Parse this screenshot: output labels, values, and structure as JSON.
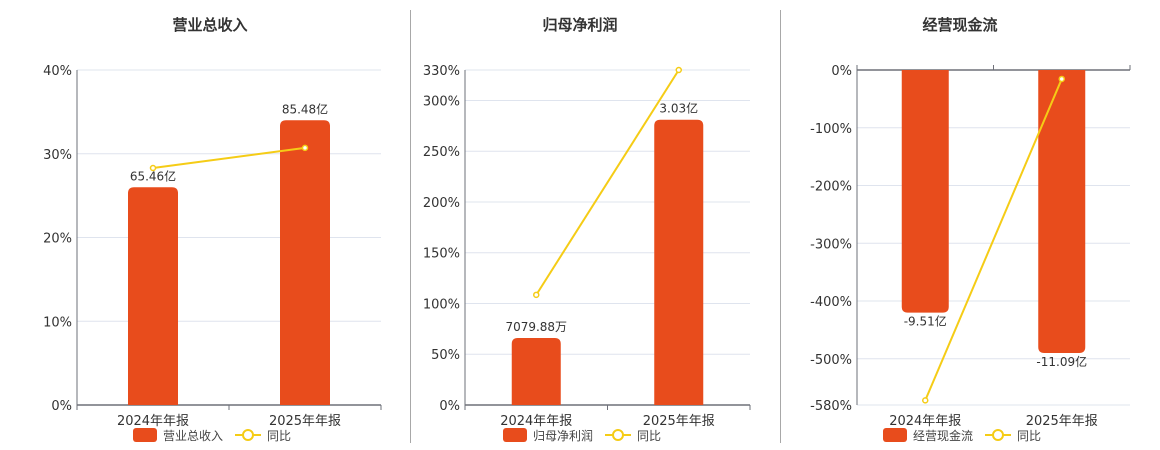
{
  "colors": {
    "bar": "#e84c1c",
    "line": "#f5cc16",
    "grid": "#dfe4ee",
    "axis": "#6e7079",
    "text": "#333333"
  },
  "legend": {
    "line_label": "同比"
  },
  "chart_data": [
    {
      "type": "bar+line",
      "title": "营业总收入",
      "categories": [
        "2024年年报",
        "2025年年报"
      ],
      "yticks": [
        "0%",
        "10%",
        "20%",
        "30%",
        "40%"
      ],
      "ylim": [
        0,
        40
      ],
      "series": [
        {
          "name": "营业总收入",
          "type": "bar",
          "values": [
            26.0,
            34.0
          ],
          "labels": [
            "65.46亿",
            "85.48亿"
          ]
        },
        {
          "name": "同比",
          "type": "line",
          "values": [
            28.3,
            30.7
          ]
        }
      ]
    },
    {
      "type": "bar+line",
      "title": "归母净利润",
      "categories": [
        "2024年年报",
        "2025年年报"
      ],
      "yticks": [
        "0%",
        "50%",
        "100%",
        "150%",
        "200%",
        "250%",
        "300%",
        "330%"
      ],
      "ylim": [
        0,
        330
      ],
      "series": [
        {
          "name": "归母净利润",
          "type": "bar",
          "values": [
            66,
            281
          ],
          "labels": [
            "7079.88万",
            "3.03亿"
          ]
        },
        {
          "name": "同比",
          "type": "line",
          "values": [
            108.5,
            330
          ]
        }
      ]
    },
    {
      "type": "bar+line",
      "title": "经营现金流",
      "categories": [
        "2024年年报",
        "2025年年报"
      ],
      "yticks": [
        "-580%",
        "-500%",
        "-400%",
        "-300%",
        "-200%",
        "-100%",
        "0%"
      ],
      "ylim": [
        -580,
        0
      ],
      "series": [
        {
          "name": "经营现金流",
          "type": "bar",
          "values": [
            -420,
            -490
          ],
          "labels": [
            "-9.51亿",
            "-11.09亿"
          ]
        },
        {
          "name": "同比",
          "type": "line",
          "values": [
            -572,
            -15.5
          ]
        }
      ]
    }
  ]
}
